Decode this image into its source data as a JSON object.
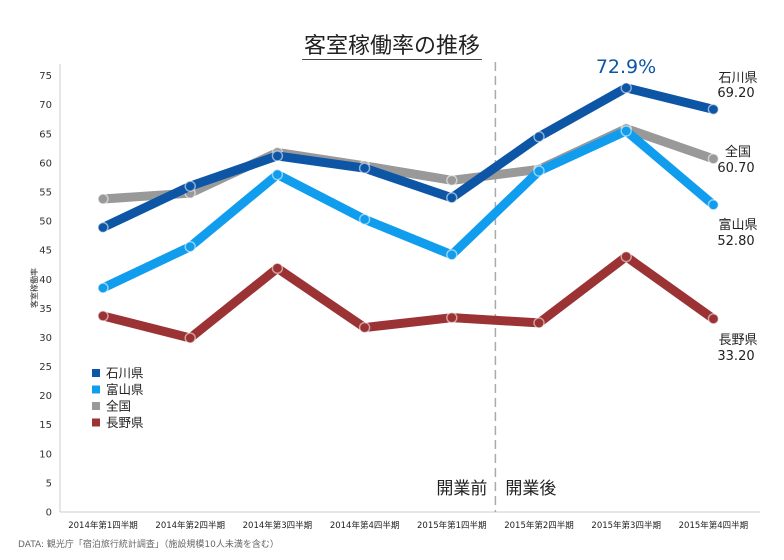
{
  "chart_data": {
    "type": "line",
    "title": "客室稼働率の推移",
    "xlabel": "",
    "ylabel": "客室稼働率",
    "ylim": [
      0,
      77
    ],
    "yticks": [
      0,
      5,
      10,
      15,
      20,
      25,
      30,
      35,
      40,
      45,
      50,
      55,
      60,
      65,
      70,
      75
    ],
    "categories": [
      "2014年第1四半期",
      "2014年第2四半期",
      "2014年第3四半期",
      "2014年第4四半期",
      "2015年第1四半期",
      "2015年第2四半期",
      "2015年第3四半期",
      "2015年第4四半期"
    ],
    "series": [
      {
        "name": "全国",
        "color": "#999999",
        "values": [
          53.8,
          54.8,
          61.8,
          59.5,
          57.0,
          58.9,
          65.9,
          60.7
        ],
        "end_label": "全国",
        "end_value": "60.70"
      },
      {
        "name": "石川県",
        "color": "#0d56a6",
        "values": [
          48.9,
          56.0,
          61.2,
          59.1,
          54.0,
          64.5,
          72.9,
          69.2
        ],
        "end_label": "石川県",
        "end_value": "69.20"
      },
      {
        "name": "富山県",
        "color": "#119dee",
        "values": [
          38.5,
          45.6,
          58.0,
          50.3,
          44.2,
          58.6,
          65.5,
          52.8
        ],
        "end_label": "富山県",
        "end_value": "52.80"
      },
      {
        "name": "長野県",
        "color": "#9b3335",
        "values": [
          33.7,
          29.9,
          41.9,
          31.7,
          33.4,
          32.5,
          43.9,
          33.2
        ],
        "end_label": "長野県",
        "end_value": "33.20"
      }
    ],
    "annotations": {
      "peak": "72.9%",
      "before_label": "開業前",
      "after_label": "開業後"
    },
    "legend": {
      "placement": "bottom-left",
      "order": [
        "石川県",
        "富山県",
        "全国",
        "長野県"
      ]
    },
    "grid": false,
    "divider_after_category_index": 4
  },
  "source_note": "DATA: 観光庁「宿泊旅行統計調査」（施設規模10人未満を含む）"
}
